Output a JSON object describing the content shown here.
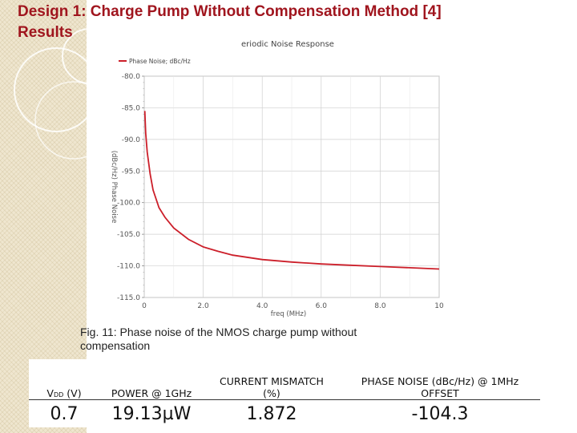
{
  "slide": {
    "title_line1": "Design 1: Charge Pump Without Compensation Method [4]",
    "title_line2": "Results",
    "caption_line1": "Fig. 11: Phase noise of the NMOS charge pump without",
    "caption_line2": "compensation"
  },
  "chart_data": {
    "type": "line",
    "title": "eriodic Noise Response",
    "xlabel": "freq (MHz)",
    "ylabel": "(dBc/Hz) Phase Noise",
    "legend": "Phase Noise; dBc/Hz",
    "xlim": [
      0,
      10
    ],
    "ylim": [
      -115,
      -80
    ],
    "x_ticks": [
      "0",
      "2.0",
      "4.0",
      "6.0",
      "8.0",
      "10"
    ],
    "y_ticks": [
      "-80.0",
      "-85.0",
      "-90.0",
      "-95.0",
      "-100.0",
      "-105.0",
      "-110.0",
      "-115.0"
    ],
    "grid": true,
    "legend_position": "top-left",
    "series_color": "#cc1f2a",
    "series": [
      {
        "name": "Phase Noise; dBc/Hz",
        "x": [
          0.02,
          0.05,
          0.1,
          0.2,
          0.3,
          0.5,
          0.7,
          1.0,
          1.5,
          2.0,
          2.5,
          3.0,
          4.0,
          5.0,
          6.0,
          7.0,
          8.0,
          9.0,
          10.0
        ],
        "y": [
          -85.5,
          -89.0,
          -92.0,
          -95.5,
          -98.0,
          -100.8,
          -102.3,
          -104.0,
          -105.8,
          -107.0,
          -107.7,
          -108.3,
          -109.0,
          -109.4,
          -109.7,
          -109.9,
          -110.1,
          -110.3,
          -110.5
        ]
      }
    ]
  },
  "table": {
    "headers": {
      "vdd_main": "VDD",
      "vdd_sub": "DD",
      "vdd_unit": "(V)",
      "power": "POWER @ 1GHz",
      "mismatch_line1": "CURRENT MISMATCH",
      "mismatch_line2": "(%)",
      "noise_line1": "PHASE NOISE (dBc/Hz) @ 1MHz",
      "noise_line2": "OFFSET"
    },
    "values": {
      "vdd": "0.7",
      "power": "19.13µW",
      "mismatch": "1.872",
      "noise": "-104.3"
    }
  }
}
